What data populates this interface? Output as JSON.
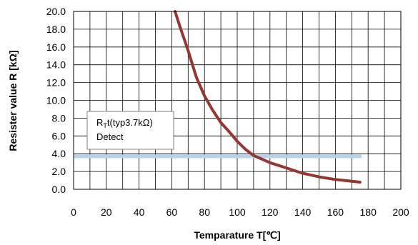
{
  "chart_data": {
    "type": "line",
    "title": "",
    "xlabel": "Temparature T[℃]",
    "ylabel": "Resister value  R  [kΩ]",
    "xlim": [
      0,
      200
    ],
    "ylim": [
      0,
      20
    ],
    "x_ticks": [
      "0",
      "20",
      "40",
      "60",
      "80",
      "100",
      "120",
      "140",
      "160",
      "180",
      "200"
    ],
    "y_ticks": [
      "0.0",
      "2.0",
      "4.0",
      "6.0",
      "8.0",
      "10.0",
      "12.0",
      "14.0",
      "16.0",
      "18.0",
      "20.0"
    ],
    "x_minor_step": 10,
    "grid": true,
    "series": [
      {
        "color": "#943634",
        "x": [
          62,
          65,
          70,
          75,
          80,
          85,
          90,
          95,
          100,
          105,
          110,
          120,
          130,
          140,
          150,
          160,
          170,
          175
        ],
        "y": [
          20.0,
          18.3,
          15.6,
          12.6,
          10.5,
          8.9,
          7.5,
          6.5,
          5.4,
          4.5,
          3.8,
          3.0,
          2.4,
          1.8,
          1.4,
          1.1,
          0.9,
          0.8
        ]
      }
    ],
    "reference_line": {
      "y": 3.7,
      "x_start": 0,
      "x_end": 176,
      "color": "#b7d3ea"
    },
    "annotation": {
      "main": "R",
      "sub": "T",
      "rest": "t(typ3.7kΩ)",
      "line2": "Detect"
    }
  }
}
